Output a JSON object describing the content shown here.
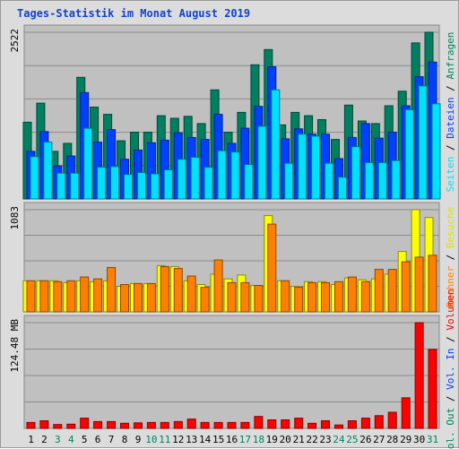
{
  "title": "Tages-Statistik im Monat August 2019",
  "chart_data": [
    {
      "type": "bar",
      "panel": "top",
      "categories": [
        "1",
        "2",
        "3",
        "4",
        "5",
        "6",
        "7",
        "8",
        "9",
        "10",
        "11",
        "12",
        "13",
        "14",
        "15",
        "16",
        "17",
        "18",
        "19",
        "20",
        "21",
        "22",
        "23",
        "24",
        "25",
        "26",
        "27",
        "28",
        "29",
        "30",
        "31"
      ],
      "weekend_categories": [
        "3",
        "4",
        "10",
        "11",
        "17",
        "18",
        "24",
        "25",
        "31"
      ],
      "ytick_label": "2522",
      "ylim": [
        0,
        2522
      ],
      "grid": true,
      "legend": [
        {
          "name": "Anfragen",
          "color": "#008060"
        },
        {
          "name": "Dateien",
          "color": "#0040ff"
        },
        {
          "name": "Seiten",
          "color": "#00e0ff"
        }
      ],
      "legend_separator": "/",
      "series": [
        {
          "name": "Anfragen",
          "color": "#008060",
          "values": [
            1160,
            1450,
            720,
            840,
            1840,
            1390,
            1280,
            880,
            1010,
            1010,
            1260,
            1220,
            1250,
            1140,
            1650,
            1010,
            1310,
            2030,
            2260,
            1120,
            1310,
            1260,
            1200,
            900,
            1420,
            1180,
            1140,
            1410,
            1630,
            2360,
            2522
          ]
        },
        {
          "name": "Dateien",
          "color": "#0040ff",
          "values": [
            720,
            1020,
            500,
            650,
            1610,
            860,
            1050,
            600,
            740,
            850,
            890,
            1000,
            930,
            900,
            1280,
            840,
            1070,
            1400,
            2000,
            910,
            1060,
            980,
            980,
            610,
            930,
            1140,
            920,
            1010,
            1410,
            1850,
            2070
          ]
        },
        {
          "name": "Seiten",
          "color": "#00e0ff",
          "values": [
            640,
            860,
            390,
            390,
            1070,
            480,
            490,
            370,
            400,
            380,
            440,
            600,
            630,
            480,
            730,
            710,
            520,
            1100,
            1650,
            540,
            980,
            950,
            540,
            330,
            790,
            550,
            550,
            580,
            1350,
            1710,
            1440
          ]
        }
      ]
    },
    {
      "type": "bar",
      "panel": "middle",
      "categories": [
        "1",
        "2",
        "3",
        "4",
        "5",
        "6",
        "7",
        "8",
        "9",
        "10",
        "11",
        "12",
        "13",
        "14",
        "15",
        "16",
        "17",
        "18",
        "19",
        "20",
        "21",
        "22",
        "23",
        "24",
        "25",
        "26",
        "27",
        "28",
        "29",
        "30",
        "31"
      ],
      "ytick_label": "1083",
      "ylim": [
        0,
        1083
      ],
      "grid": true,
      "legend": [
        {
          "name": "Besuche",
          "color": "#e0e000"
        },
        {
          "name": "Rechner",
          "color": "#ff8000"
        }
      ],
      "legend_separator": "/",
      "series": [
        {
          "name": "Besuche",
          "color": "#ffff00",
          "values": [
            330,
            330,
            330,
            310,
            330,
            320,
            330,
            270,
            300,
            300,
            490,
            480,
            330,
            290,
            400,
            350,
            390,
            280,
            1020,
            330,
            270,
            320,
            320,
            290,
            360,
            340,
            350,
            400,
            640,
            1083,
            1000
          ]
        },
        {
          "name": "Rechner",
          "color": "#ff8000",
          "values": [
            330,
            330,
            320,
            330,
            370,
            350,
            470,
            290,
            300,
            300,
            480,
            460,
            380,
            260,
            550,
            310,
            310,
            280,
            930,
            330,
            260,
            310,
            310,
            320,
            370,
            320,
            450,
            450,
            530,
            580,
            600
          ]
        }
      ]
    },
    {
      "type": "bar",
      "panel": "bottom",
      "categories": [
        "1",
        "2",
        "3",
        "4",
        "5",
        "6",
        "7",
        "8",
        "9",
        "10",
        "11",
        "12",
        "13",
        "14",
        "15",
        "16",
        "17",
        "18",
        "19",
        "20",
        "21",
        "22",
        "23",
        "24",
        "25",
        "26",
        "27",
        "28",
        "29",
        "30",
        "31"
      ],
      "ytick_label": "124.48 MB",
      "ylim": [
        0,
        124.48
      ],
      "grid": true,
      "legend": [
        {
          "name": "Volumen",
          "color": "#ff0000"
        },
        {
          "name": "Vol. In",
          "color": "#0040ff"
        },
        {
          "name": "Vol. Out",
          "color": "#008060"
        }
      ],
      "legend_separator": "/",
      "series": [
        {
          "name": "Volumen",
          "color": "#ff0000",
          "values": [
            7,
            9,
            4.5,
            5,
            12,
            8,
            8,
            6,
            6.5,
            7,
            7,
            8,
            11,
            7,
            7,
            7,
            7,
            14,
            10,
            10,
            12,
            6,
            9,
            4,
            9,
            12,
            15,
            19,
            36,
            124.48,
            93
          ]
        }
      ]
    }
  ]
}
